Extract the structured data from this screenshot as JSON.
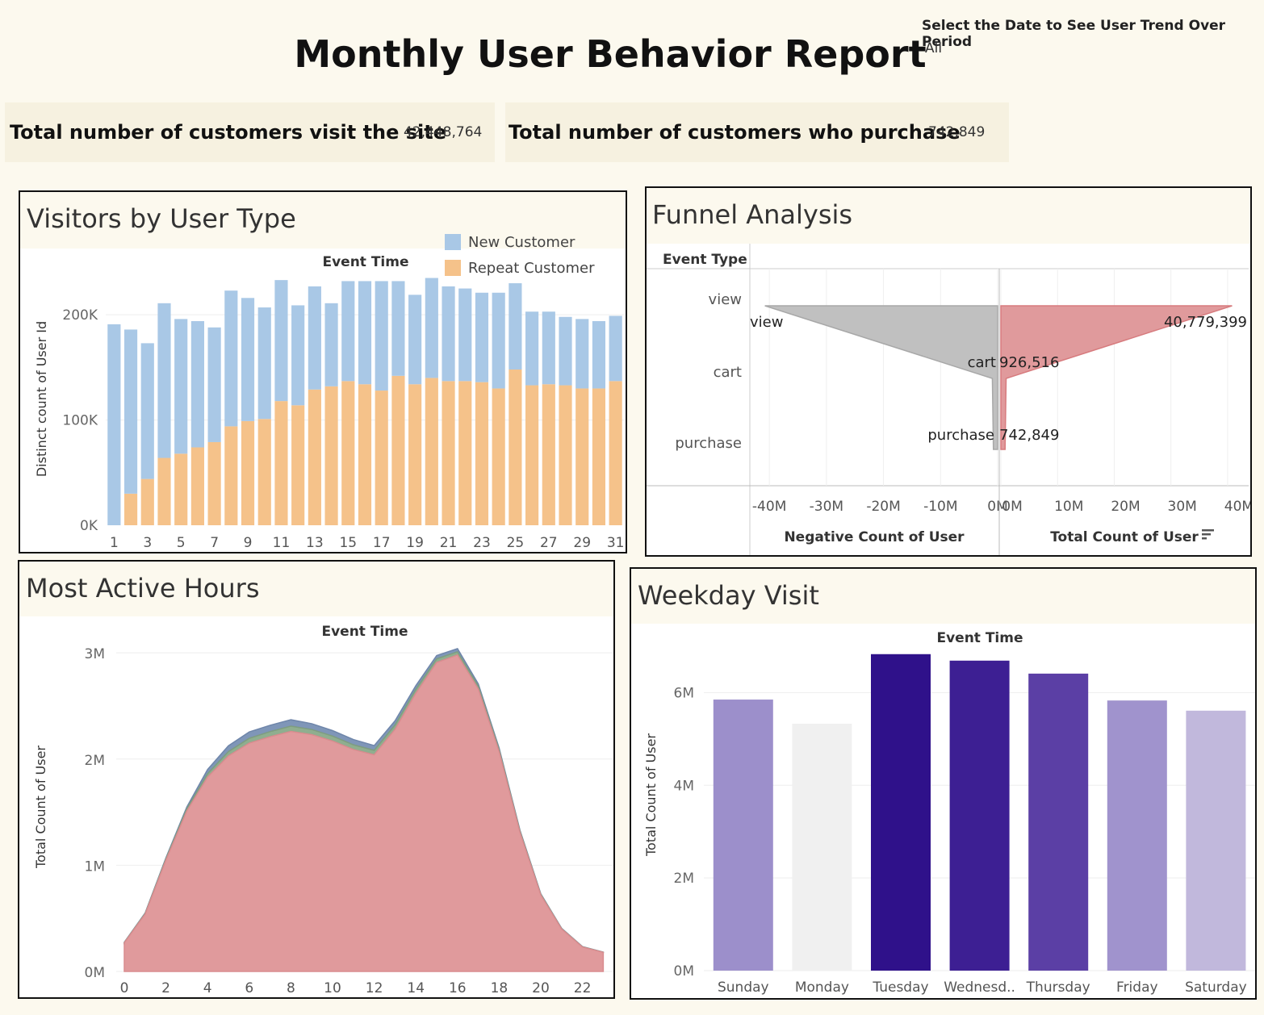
{
  "header": {
    "title": "Monthly User Behavior Report",
    "filter_label": "Select the Date to See User Trend Over Period",
    "filter_value": "All"
  },
  "kpis": [
    {
      "label": "Total number of customers visit the site",
      "value": "42,448,764"
    },
    {
      "label": "Total number of customers who purchase",
      "value": "742,849"
    }
  ],
  "colors": {
    "background": "#fcf9ee",
    "new_customer": "#a9c8e6",
    "repeat_customer": "#f5c28a",
    "funnel_negative": "#c0c0c0",
    "funnel_positive": "#e09a9c",
    "hours_area": "#e09a9c",
    "hours_top": "#7f96b8",
    "hours_mid": "#8fae8f"
  },
  "visitors": {
    "title": "Visitors by User Type",
    "chart_data": {
      "type": "bar",
      "header": "Event Time",
      "ylabel": "Distinct count of User Id",
      "ylim": [
        0,
        240000
      ],
      "yticks": [
        {
          "v": 0,
          "label": "0K"
        },
        {
          "v": 100000,
          "label": "100K"
        },
        {
          "v": 200000,
          "label": "200K"
        }
      ],
      "xticks": [
        "1",
        "3",
        "5",
        "7",
        "9",
        "11",
        "13",
        "15",
        "17",
        "19",
        "21",
        "23",
        "25",
        "27",
        "29",
        "31"
      ],
      "legend": {
        "position": "top-right"
      },
      "categories": [
        1,
        2,
        3,
        4,
        5,
        6,
        7,
        8,
        9,
        10,
        11,
        12,
        13,
        14,
        15,
        16,
        17,
        18,
        19,
        20,
        21,
        22,
        23,
        24,
        25,
        26,
        27,
        28,
        29,
        30,
        31
      ],
      "series": [
        {
          "name": "New Customer",
          "values": [
            191000,
            156000,
            129000,
            147000,
            128000,
            120000,
            109000,
            129000,
            117000,
            106000,
            115000,
            95000,
            98000,
            79000,
            95000,
            98000,
            104000,
            90000,
            85000,
            95000,
            90000,
            88000,
            85000,
            91000,
            82000,
            70000,
            69000,
            65000,
            66000,
            64000,
            62000
          ]
        },
        {
          "name": "Repeat Customer",
          "values": [
            0,
            30000,
            44000,
            64000,
            68000,
            74000,
            79000,
            94000,
            99000,
            101000,
            118000,
            114000,
            129000,
            132000,
            137000,
            134000,
            128000,
            142000,
            134000,
            140000,
            137000,
            137000,
            136000,
            130000,
            148000,
            133000,
            134000,
            133000,
            130000,
            130000,
            137000
          ]
        }
      ]
    }
  },
  "funnel": {
    "title": "Funnel Analysis",
    "row_header": "Event Type",
    "chart_data": {
      "type": "area",
      "categories": [
        "view",
        "cart",
        "purchase"
      ],
      "series": [
        {
          "name": "Negative Count of User",
          "values": [
            -40779399,
            -926516,
            -742849
          ]
        },
        {
          "name": "Total Count of User",
          "values": [
            40779399,
            926516,
            742849
          ]
        }
      ],
      "data_labels": [
        {
          "category": "view",
          "neg": "view",
          "pos": "40,779,399"
        },
        {
          "category": "cart",
          "neg": "cart",
          "pos": "926,516"
        },
        {
          "category": "purchase",
          "neg": "purchase",
          "pos": "742,849"
        }
      ],
      "neg_xlim": [
        -42000000,
        0
      ],
      "pos_xlim": [
        0,
        42000000
      ],
      "neg_ticks": [
        {
          "v": -40000000,
          "label": "-40M"
        },
        {
          "v": -30000000,
          "label": "-30M"
        },
        {
          "v": -20000000,
          "label": "-20M"
        },
        {
          "v": -10000000,
          "label": "-10M"
        },
        {
          "v": 0,
          "label": "0M"
        }
      ],
      "pos_ticks": [
        {
          "v": 0,
          "label": "0M"
        },
        {
          "v": 10000000,
          "label": "10M"
        },
        {
          "v": 20000000,
          "label": "20M"
        },
        {
          "v": 30000000,
          "label": "30M"
        },
        {
          "v": 40000000,
          "label": "40M"
        }
      ],
      "xlabel_neg": "Negative Count of User",
      "xlabel_pos": "Total Count of User"
    }
  },
  "hours": {
    "title": "Most Active Hours",
    "chart_data": {
      "type": "area",
      "header": "Event Time",
      "ylabel": "Total Count of User",
      "ylim": [
        0,
        3100000
      ],
      "yticks": [
        {
          "v": 0,
          "label": "0M"
        },
        {
          "v": 1000000,
          "label": "1M"
        },
        {
          "v": 2000000,
          "label": "2M"
        },
        {
          "v": 3000000,
          "label": "3M"
        }
      ],
      "xticks": [
        "0",
        "2",
        "4",
        "6",
        "8",
        "10",
        "12",
        "14",
        "16",
        "18",
        "20",
        "22"
      ],
      "x": [
        0,
        1,
        2,
        3,
        4,
        5,
        6,
        7,
        8,
        9,
        10,
        11,
        12,
        13,
        14,
        15,
        16,
        17,
        18,
        19,
        20,
        21,
        22,
        23
      ],
      "series": [
        {
          "name": "view",
          "values": [
            270000,
            540000,
            1050000,
            1510000,
            1830000,
            2030000,
            2150000,
            2210000,
            2260000,
            2230000,
            2170000,
            2090000,
            2040000,
            2280000,
            2620000,
            2910000,
            2980000,
            2660000,
            2070000,
            1310000,
            720000,
            400000,
            230000,
            180000
          ]
        },
        {
          "name": "cart",
          "values": [
            3000,
            6000,
            12000,
            20000,
            32000,
            40000,
            45000,
            48000,
            50000,
            48000,
            46000,
            44000,
            42000,
            40000,
            36000,
            33000,
            30000,
            25000,
            18000,
            11000,
            6000,
            3000,
            2000,
            1000
          ]
        },
        {
          "name": "purchase",
          "values": [
            2000,
            4000,
            8000,
            18000,
            40000,
            55000,
            60000,
            60000,
            60000,
            55000,
            52000,
            50000,
            45000,
            40000,
            35000,
            32000,
            30000,
            22000,
            15000,
            9000,
            5000,
            3000,
            2000,
            1000
          ]
        }
      ]
    }
  },
  "weekday": {
    "title": "Weekday Visit",
    "chart_data": {
      "type": "bar",
      "header": "Event Time",
      "ylabel": "Total Count of User",
      "ylim": [
        0,
        7000000
      ],
      "yticks": [
        {
          "v": 0,
          "label": "0M"
        },
        {
          "v": 2000000,
          "label": "2M"
        },
        {
          "v": 4000000,
          "label": "4M"
        },
        {
          "v": 6000000,
          "label": "6M"
        }
      ],
      "categories": [
        "Sunday",
        "Monday",
        "Tuesday",
        "Wednesd..",
        "Thursday",
        "Friday",
        "Saturday"
      ],
      "values": [
        5850000,
        5330000,
        6830000,
        6690000,
        6410000,
        5830000,
        5610000
      ],
      "colors": [
        "#9c8fcb",
        "#f0f0f0",
        "#2f118a",
        "#3d1f93",
        "#5b3fa5",
        "#a093cd",
        "#c1b8dc"
      ]
    }
  }
}
